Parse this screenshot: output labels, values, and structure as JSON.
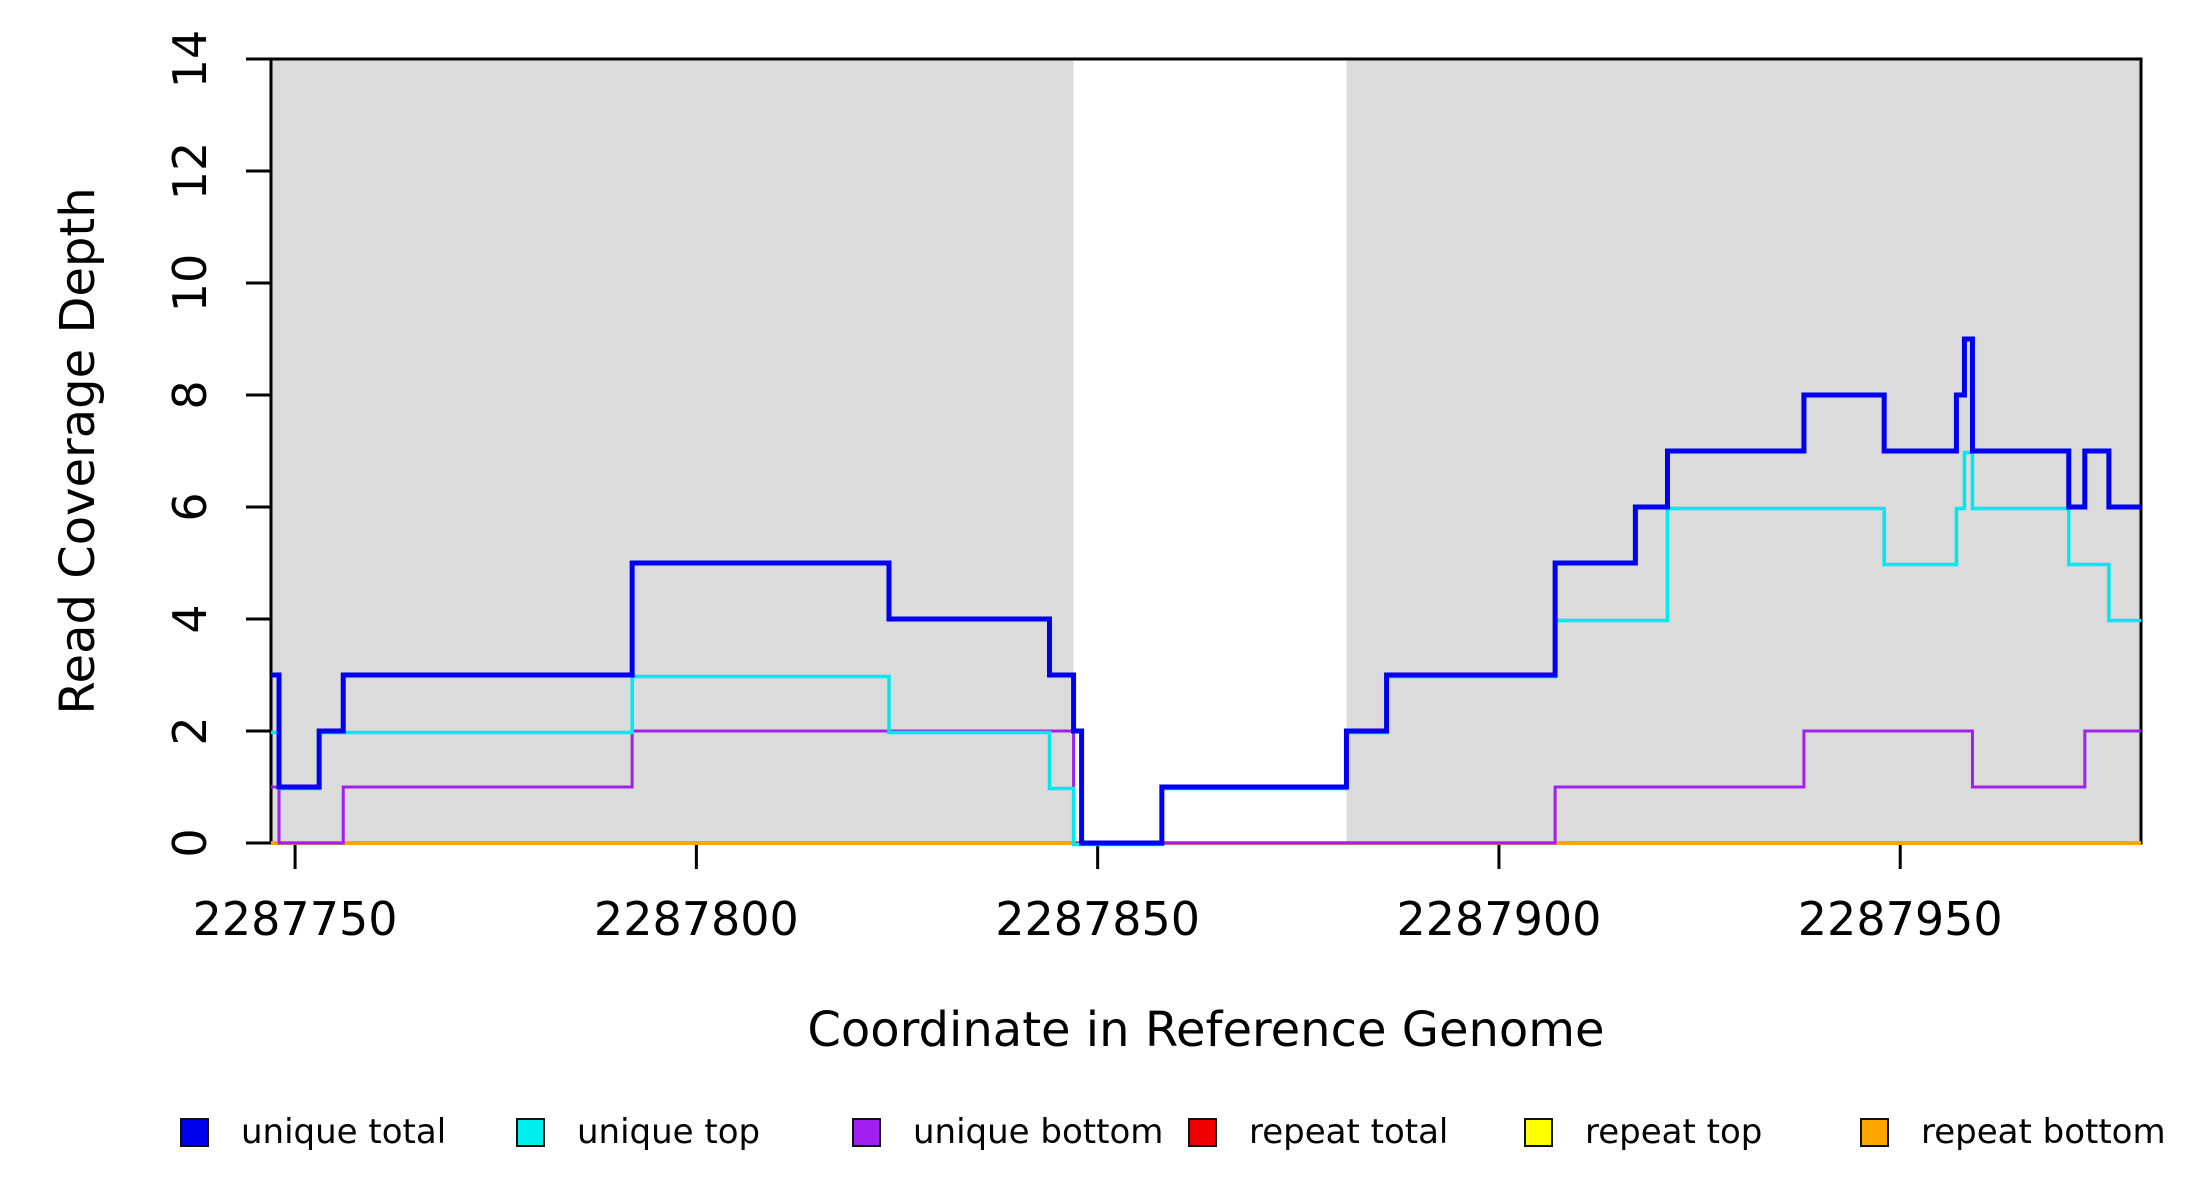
{
  "chart_data": {
    "type": "line",
    "subtype": "step-coverage",
    "title": "",
    "xlabel": "Coordinate in Reference Genome",
    "ylabel": "Read Coverage Depth",
    "xlim": [
      2287747,
      2287980
    ],
    "ylim": [
      0,
      14
    ],
    "x_ticks": [
      2287750,
      2287800,
      2287850,
      2287900,
      2287950
    ],
    "y_ticks": [
      0,
      2,
      4,
      6,
      8,
      10,
      12,
      14
    ],
    "grid": false,
    "legend_position": "bottom",
    "shaded_regions": [
      {
        "x0": 2287747,
        "x1": 2287847,
        "color": "#DBDBDB"
      },
      {
        "x0": 2287881,
        "x1": 2287980,
        "color": "#DBDBDB"
      }
    ],
    "draw_order": [
      "repeat total",
      "repeat top",
      "repeat bottom",
      "unique bottom",
      "unique top",
      "unique total"
    ],
    "series": [
      {
        "name": "unique total",
        "color": "#0000EE",
        "stroke_width": 5,
        "offset_y": 0,
        "steps": [
          [
            2287747,
            3
          ],
          [
            2287748,
            1
          ],
          [
            2287753,
            2
          ],
          [
            2287756,
            3
          ],
          [
            2287792,
            5
          ],
          [
            2287824,
            4
          ],
          [
            2287844,
            3
          ],
          [
            2287847,
            2
          ],
          [
            2287848,
            0
          ],
          [
            2287858,
            1
          ],
          [
            2287881,
            2
          ],
          [
            2287886,
            3
          ],
          [
            2287907,
            5
          ],
          [
            2287917,
            6
          ],
          [
            2287921,
            7
          ],
          [
            2287938,
            8
          ],
          [
            2287948,
            7
          ],
          [
            2287957,
            8
          ],
          [
            2287958,
            9
          ],
          [
            2287959,
            7
          ],
          [
            2287971,
            6
          ],
          [
            2287973,
            7
          ],
          [
            2287976,
            6
          ]
        ],
        "x_end": 2287980
      },
      {
        "name": "unique top",
        "color": "#00E8F0",
        "stroke_width": 3.5,
        "offset_y": 1.5,
        "steps": [
          [
            2287747,
            2
          ],
          [
            2287748,
            1
          ],
          [
            2287753,
            2
          ],
          [
            2287792,
            3
          ],
          [
            2287824,
            2
          ],
          [
            2287844,
            1
          ],
          [
            2287847,
            0
          ],
          [
            2287858,
            1
          ],
          [
            2287881,
            2
          ],
          [
            2287886,
            3
          ],
          [
            2287907,
            4
          ],
          [
            2287921,
            6
          ],
          [
            2287948,
            5
          ],
          [
            2287957,
            6
          ],
          [
            2287958,
            7
          ],
          [
            2287959,
            6
          ],
          [
            2287971,
            5
          ],
          [
            2287976,
            4
          ]
        ],
        "x_end": 2287980
      },
      {
        "name": "unique bottom",
        "color": "#A020F0",
        "stroke_width": 3,
        "offset_y": 0,
        "steps": [
          [
            2287747,
            1
          ],
          [
            2287748,
            0
          ],
          [
            2287756,
            1
          ],
          [
            2287792,
            2
          ],
          [
            2287847,
            0
          ],
          [
            2287907,
            1
          ],
          [
            2287938,
            2
          ],
          [
            2287959,
            1
          ],
          [
            2287973,
            2
          ]
        ],
        "x_end": 2287980
      },
      {
        "name": "repeat total",
        "color": "#EE0000",
        "stroke_width": 3,
        "offset_y": 0,
        "steps": [
          [
            2287747,
            0
          ]
        ],
        "x_end": 2287980
      },
      {
        "name": "repeat top",
        "color": "#FFFF00",
        "stroke_width": 3,
        "offset_y": 0,
        "steps": [
          [
            2287747,
            0
          ]
        ],
        "x_end": 2287980
      },
      {
        "name": "repeat bottom",
        "color": "#FFA500",
        "stroke_width": 4,
        "offset_y": 0,
        "steps": [
          [
            2287747,
            0
          ]
        ],
        "x_end": 2287980
      }
    ],
    "legend": [
      {
        "label": "unique total",
        "color": "#0000EE"
      },
      {
        "label": "unique top",
        "color": "#00F0F0"
      },
      {
        "label": "unique bottom",
        "color": "#A020F0"
      },
      {
        "label": "repeat total",
        "color": "#EE0000"
      },
      {
        "label": "repeat top",
        "color": "#FFFF00"
      },
      {
        "label": "repeat bottom",
        "color": "#FFA500"
      }
    ]
  }
}
